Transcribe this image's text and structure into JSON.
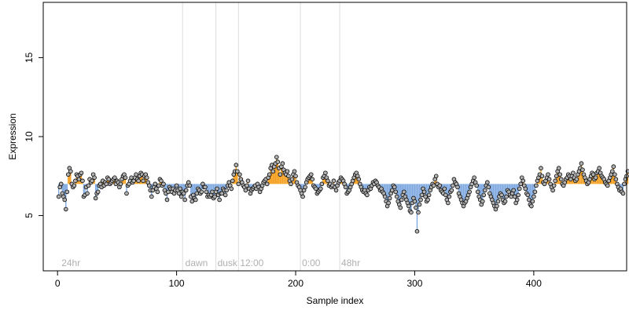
{
  "chart_data": {
    "type": "scatter",
    "xlabel": "Sample index",
    "ylabel": "Expression",
    "xlim": [
      -12,
      478
    ],
    "ylim": [
      1.5,
      18.5
    ],
    "x_ticks": [
      0,
      100,
      200,
      300,
      400
    ],
    "y_ticks": [
      5,
      10,
      15
    ],
    "baseline": 7.0,
    "grid": false,
    "colors": {
      "above_baseline": "#f5a020",
      "below_baseline": "#7fa9e0",
      "point_fill": "#b0b0b0",
      "point_stroke": "#000000",
      "phase_line": "#dddddd",
      "annotation_text": "#b0b0b0"
    },
    "phase_annotations": [
      {
        "label": "24hr",
        "x": 2
      },
      {
        "label": "dawn",
        "x": 106
      },
      {
        "label": "dusk",
        "x": 133
      },
      {
        "label": "12:00",
        "x": 152
      },
      {
        "label": "0:00",
        "x": 204
      },
      {
        "label": "48hr",
        "x": 237
      }
    ],
    "phase_lines": [
      105,
      133,
      152,
      204,
      237
    ],
    "series": [
      {
        "x_start": 1,
        "values": [
          6.2,
          6.8,
          7.0,
          6.4,
          6.2,
          6.0,
          5.4,
          6.5,
          7.6,
          8.0,
          7.8,
          7.0,
          6.8,
          6.9,
          7.2,
          7.6,
          7.5,
          7.3,
          7.6,
          7.7,
          7.2,
          6.2,
          6.3,
          6.8,
          6.4,
          6.9,
          7.3,
          7.1,
          7.2,
          7.6,
          7.4,
          6.1,
          6.4,
          6.5,
          6.9,
          7.0,
          6.8,
          7.2,
          6.9,
          7.1,
          7.0,
          7.4,
          7.3,
          7.0,
          7.1,
          7.2,
          7.3,
          7.4,
          7.0,
          7.2,
          7.1,
          6.8,
          7.0,
          7.3,
          7.5,
          7.6,
          7.4,
          6.4,
          6.9,
          7.0,
          7.2,
          7.4,
          7.1,
          7.2,
          7.4,
          7.6,
          7.3,
          7.2,
          7.5,
          7.7,
          7.6,
          7.2,
          7.5,
          7.6,
          7.4,
          7.1,
          6.9,
          6.6,
          6.2,
          6.6,
          6.8,
          7.0,
          6.7,
          6.5,
          6.9,
          7.3,
          7.2,
          6.9,
          7.0,
          6.6,
          6.4,
          6.0,
          6.5,
          6.8,
          6.7,
          6.5,
          6.7,
          6.4,
          6.6,
          6.9,
          6.6,
          6.4,
          6.7,
          6.2,
          6.5,
          6.4,
          6.0,
          6.6,
          6.9,
          7.1,
          6.9,
          6.2,
          5.9,
          6.3,
          6.1,
          6.0,
          6.4,
          6.7,
          6.6,
          6.4,
          6.5,
          7.0,
          6.8,
          6.8,
          6.5,
          6.2,
          6.3,
          6.2,
          6.3,
          6.5,
          6.1,
          6.2,
          6.5,
          6.7,
          6.3,
          6.0,
          6.4,
          6.4,
          6.7,
          6.6,
          6.3,
          6.6,
          6.9,
          7.1,
          6.9,
          6.7,
          7.2,
          7.6,
          7.8,
          8.2,
          7.8,
          7.0,
          7.6,
          7.3,
          7.1,
          6.9,
          6.8,
          6.6,
          6.9,
          7.2,
          6.7,
          6.4,
          6.6,
          6.7,
          6.8,
          6.9,
          6.7,
          7.0,
          6.8,
          6.5,
          6.7,
          6.9,
          7.1,
          7.2,
          7.3,
          7.0,
          7.4,
          7.6,
          8.0,
          8.2,
          7.8,
          8.1,
          8.3,
          8.7,
          8.4,
          8.0,
          7.6,
          8.1,
          8.3,
          7.9,
          7.7,
          7.6,
          7.8,
          7.5,
          7.2,
          7.0,
          7.3,
          7.6,
          7.8,
          7.5,
          7.1,
          6.9,
          6.8,
          6.6,
          6.4,
          6.2,
          6.6,
          6.8,
          7.1,
          7.3,
          7.4,
          7.5,
          7.6,
          7.3,
          6.9,
          6.8,
          6.7,
          6.4,
          6.5,
          6.6,
          6.7,
          7.0,
          7.4,
          7.5,
          7.7,
          7.4,
          7.2,
          6.9,
          7.0,
          6.8,
          6.9,
          7.2,
          6.8,
          6.6,
          6.9,
          7.1,
          7.2,
          7.4,
          7.3,
          7.2,
          7.0,
          6.8,
          6.4,
          6.5,
          6.6,
          6.8,
          7.0,
          7.2,
          7.4,
          7.6,
          7.7,
          7.5,
          7.3,
          7.0,
          6.8,
          6.6,
          6.5,
          6.6,
          6.4,
          6.3,
          6.6,
          6.8,
          6.7,
          6.9,
          7.1,
          7.0,
          7.2,
          7.1,
          6.9,
          6.8,
          6.6,
          6.7,
          6.5,
          6.4,
          6.2,
          5.9,
          5.6,
          5.8,
          6.1,
          6.4,
          6.6,
          6.9,
          6.8,
          6.5,
          6.2,
          5.9,
          5.7,
          5.5,
          6.0,
          6.3,
          6.5,
          6.2,
          6.0,
          5.8,
          5.6,
          5.3,
          5.2,
          5.8,
          6.1,
          5.9,
          5.5,
          4.0,
          5.2,
          5.7,
          6.0,
          6.3,
          6.7,
          6.5,
          6.2,
          5.9,
          6.0,
          6.3,
          6.6,
          6.8,
          7.0,
          6.9,
          7.3,
          7.5,
          7.0,
          6.8,
          6.9,
          6.6,
          6.5,
          6.4,
          6.7,
          6.3,
          6.0,
          5.8,
          6.2,
          6.5,
          6.6,
          6.9,
          7.3,
          7.1,
          7.0,
          6.8,
          6.4,
          6.2,
          6.0,
          5.8,
          5.6,
          5.8,
          5.9,
          6.1,
          6.3,
          6.5,
          6.8,
          7.0,
          7.2,
          7.4,
          7.1,
          6.9,
          6.5,
          6.2,
          6.0,
          5.7,
          5.9,
          6.3,
          6.6,
          6.9,
          7.1,
          6.8,
          6.4,
          6.2,
          6.0,
          5.8,
          5.6,
          5.4,
          5.6,
          5.9,
          6.2,
          6.4,
          6.3,
          6.0,
          5.8,
          5.9,
          6.2,
          6.6,
          6.5,
          6.3,
          6.2,
          6.4,
          6.6,
          6.2,
          5.8,
          6.0,
          6.3,
          6.7,
          7.0,
          7.4,
          7.2,
          6.9,
          6.7,
          6.4,
          6.3,
          6.0,
          5.7,
          5.6,
          5.9,
          6.2,
          6.5,
          6.9,
          7.2,
          7.4,
          7.6,
          8.0,
          7.5,
          7.1,
          7.0,
          7.2,
          7.4,
          7.6,
          7.3,
          7.0,
          6.8,
          6.6,
          6.9,
          7.2,
          7.5,
          7.8,
          8.0,
          7.6,
          7.3,
          7.0,
          6.9,
          7.1,
          7.3,
          7.4,
          7.6,
          7.5,
          7.3,
          7.5,
          7.7,
          7.4,
          7.2,
          7.3,
          7.6,
          7.8,
          8.0,
          8.3,
          7.9,
          7.6,
          7.4,
          7.2,
          7.0,
          7.1,
          7.3,
          7.5,
          7.7,
          7.6,
          7.3,
          7.4,
          7.7,
          7.8,
          8.0,
          7.7,
          7.5,
          7.4,
          7.3,
          7.1,
          7.0,
          6.9,
          7.2,
          7.4,
          7.6,
          7.8,
          8.1,
          7.6,
          7.3,
          7.0,
          6.8,
          6.6,
          6.7,
          6.5,
          6.4,
          7.0,
          7.3,
          7.5,
          7.8
        ]
      }
    ]
  }
}
